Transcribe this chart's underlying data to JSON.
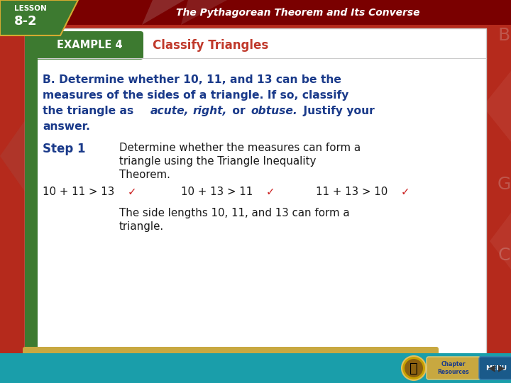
{
  "bg_color": "#b52a1c",
  "header_bg": "#7a0000",
  "header_title": "The Pythagorean Theorem and Its Converse",
  "lesson_line1": "LESSON",
  "lesson_line2": "8-2",
  "lesson_bg": "#3d7a30",
  "example_label": "EXAMPLE 4",
  "example_label_bg": "#3d7a30",
  "example_title": "Classify Triangles",
  "example_title_color": "#c0392b",
  "white_panel_color": "#ffffff",
  "body_text_color": "#1a3a8a",
  "step_label_color": "#1a3a8a",
  "step_text_color": "#1a1a1a",
  "inequality_color": "#1a1a1a",
  "check_color": "#cc2222",
  "conclusion_color": "#1a1a1a",
  "footer_teal": "#1a9eaa",
  "footer_gold": "#c8a840",
  "footer_btn_bg": "#c8a840",
  "footer_menu_bg": "#1a5a8a",
  "nav_arrow_bg": "#c8a840"
}
